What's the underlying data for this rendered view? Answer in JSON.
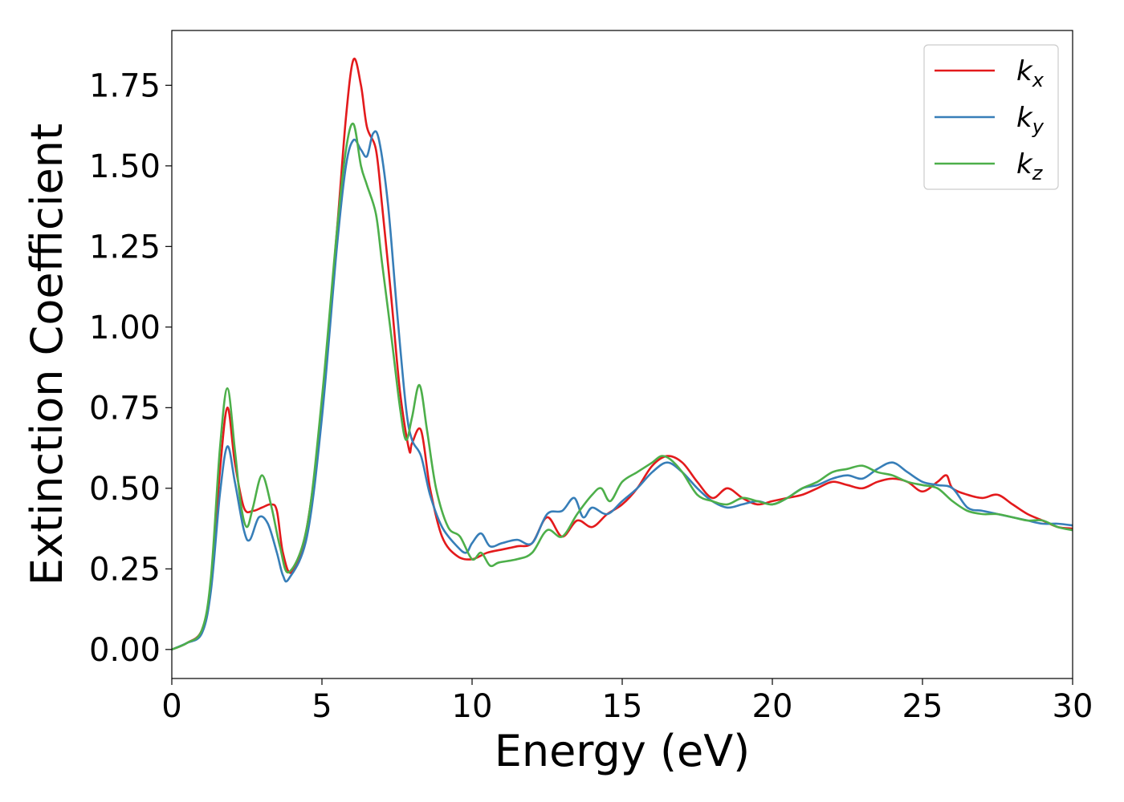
{
  "chart_data": {
    "type": "line",
    "title": "",
    "xlabel": "Energy (eV)",
    "ylabel": "Extinction Coefficient",
    "xlim": [
      0,
      30
    ],
    "ylim": [
      -0.09,
      1.92
    ],
    "xticks": [
      0,
      5,
      10,
      15,
      20,
      25,
      30
    ],
    "xtick_labels": [
      "0",
      "5",
      "10",
      "15",
      "20",
      "25",
      "30"
    ],
    "yticks": [
      0.0,
      0.25,
      0.5,
      0.75,
      1.0,
      1.25,
      1.5,
      1.75
    ],
    "ytick_labels": [
      "0.00",
      "0.25",
      "0.50",
      "0.75",
      "1.00",
      "1.25",
      "1.50",
      "1.75"
    ],
    "grid": false,
    "legend_position": "top-right",
    "series": [
      {
        "name": "k_x",
        "label_main": "k",
        "label_sub": "x",
        "color": "#e31a1c",
        "x": [
          0,
          0.5,
          1.0,
          1.3,
          1.6,
          1.85,
          2.1,
          2.4,
          2.7,
          3.0,
          3.3,
          3.5,
          3.7,
          4.0,
          4.5,
          5.0,
          5.5,
          5.8,
          6.05,
          6.3,
          6.5,
          6.8,
          7.0,
          7.3,
          7.6,
          7.9,
          8.0,
          8.3,
          8.6,
          9.0,
          9.5,
          10.0,
          10.5,
          11.0,
          11.5,
          12.0,
          12.5,
          13.0,
          13.5,
          14.0,
          14.5,
          15.0,
          15.5,
          16.0,
          16.5,
          17.0,
          17.5,
          18.0,
          18.5,
          19.0,
          19.5,
          20.0,
          20.5,
          21.0,
          21.5,
          22.0,
          22.5,
          23.0,
          23.5,
          24.0,
          24.5,
          25.0,
          25.5,
          25.8,
          26.0,
          26.5,
          27.0,
          27.5,
          28.0,
          28.5,
          29.0,
          29.5,
          30.0
        ],
        "y": [
          0.0,
          0.02,
          0.06,
          0.2,
          0.55,
          0.75,
          0.58,
          0.44,
          0.43,
          0.44,
          0.45,
          0.43,
          0.3,
          0.24,
          0.38,
          0.75,
          1.3,
          1.65,
          1.83,
          1.75,
          1.62,
          1.55,
          1.38,
          1.1,
          0.8,
          0.62,
          0.64,
          0.68,
          0.5,
          0.35,
          0.29,
          0.28,
          0.3,
          0.31,
          0.32,
          0.33,
          0.41,
          0.35,
          0.4,
          0.38,
          0.42,
          0.45,
          0.5,
          0.57,
          0.6,
          0.58,
          0.52,
          0.47,
          0.5,
          0.47,
          0.45,
          0.46,
          0.47,
          0.48,
          0.5,
          0.52,
          0.51,
          0.5,
          0.52,
          0.53,
          0.52,
          0.49,
          0.52,
          0.54,
          0.5,
          0.48,
          0.47,
          0.48,
          0.45,
          0.42,
          0.4,
          0.38,
          0.375
        ]
      },
      {
        "name": "k_y",
        "label_main": "k",
        "label_sub": "y",
        "color": "#377eb8",
        "x": [
          0,
          0.5,
          1.0,
          1.3,
          1.6,
          1.85,
          2.1,
          2.4,
          2.6,
          2.9,
          3.2,
          3.5,
          3.7,
          3.9,
          4.5,
          5.0,
          5.5,
          5.8,
          6.05,
          6.3,
          6.5,
          6.7,
          6.9,
          7.2,
          7.5,
          7.8,
          8.0,
          8.3,
          8.6,
          9.0,
          9.5,
          9.8,
          10.0,
          10.3,
          10.6,
          11.0,
          11.5,
          12.0,
          12.5,
          13.0,
          13.4,
          13.7,
          14.0,
          14.5,
          15.0,
          15.5,
          16.0,
          16.5,
          17.0,
          17.5,
          18.0,
          18.5,
          19.0,
          19.5,
          20.0,
          20.5,
          21.0,
          21.5,
          22.0,
          22.5,
          23.0,
          23.5,
          24.0,
          24.5,
          25.0,
          25.5,
          26.0,
          26.5,
          27.0,
          27.5,
          28.0,
          28.5,
          29.0,
          29.5,
          30.0
        ],
        "y": [
          0.0,
          0.02,
          0.05,
          0.18,
          0.48,
          0.63,
          0.52,
          0.37,
          0.34,
          0.41,
          0.39,
          0.3,
          0.23,
          0.22,
          0.35,
          0.72,
          1.25,
          1.5,
          1.58,
          1.55,
          1.53,
          1.6,
          1.58,
          1.38,
          1.05,
          0.75,
          0.65,
          0.6,
          0.48,
          0.38,
          0.32,
          0.3,
          0.33,
          0.36,
          0.32,
          0.33,
          0.34,
          0.33,
          0.42,
          0.43,
          0.47,
          0.41,
          0.44,
          0.42,
          0.46,
          0.5,
          0.55,
          0.58,
          0.55,
          0.5,
          0.46,
          0.44,
          0.45,
          0.46,
          0.45,
          0.47,
          0.5,
          0.51,
          0.53,
          0.54,
          0.53,
          0.56,
          0.58,
          0.55,
          0.52,
          0.51,
          0.5,
          0.44,
          0.43,
          0.42,
          0.41,
          0.4,
          0.39,
          0.39,
          0.385
        ]
      },
      {
        "name": "k_z",
        "label_main": "k",
        "label_sub": "z",
        "color": "#4daf4a",
        "x": [
          0,
          0.5,
          1.0,
          1.3,
          1.6,
          1.85,
          2.1,
          2.3,
          2.5,
          2.7,
          3.0,
          3.3,
          3.6,
          3.9,
          4.5,
          5.0,
          5.5,
          5.8,
          6.05,
          6.3,
          6.5,
          6.8,
          7.0,
          7.3,
          7.6,
          7.8,
          8.0,
          8.25,
          8.5,
          8.8,
          9.2,
          9.6,
          10.0,
          10.3,
          10.6,
          10.9,
          11.5,
          12.0,
          12.5,
          13.0,
          13.5,
          14.0,
          14.3,
          14.6,
          15.0,
          15.5,
          16.0,
          16.3,
          16.6,
          17.0,
          17.5,
          18.0,
          18.5,
          19.0,
          19.5,
          20.0,
          20.5,
          21.0,
          21.5,
          22.0,
          22.5,
          23.0,
          23.5,
          24.0,
          24.5,
          25.0,
          25.5,
          26.0,
          26.5,
          27.0,
          27.5,
          28.0,
          28.5,
          29.0,
          29.5,
          30.0
        ],
        "y": [
          0.0,
          0.02,
          0.06,
          0.22,
          0.62,
          0.81,
          0.62,
          0.45,
          0.38,
          0.44,
          0.54,
          0.45,
          0.32,
          0.24,
          0.38,
          0.78,
          1.3,
          1.55,
          1.63,
          1.5,
          1.44,
          1.35,
          1.2,
          0.98,
          0.75,
          0.65,
          0.72,
          0.82,
          0.68,
          0.5,
          0.38,
          0.35,
          0.28,
          0.3,
          0.26,
          0.27,
          0.28,
          0.3,
          0.37,
          0.35,
          0.42,
          0.48,
          0.5,
          0.46,
          0.52,
          0.55,
          0.58,
          0.6,
          0.59,
          0.55,
          0.48,
          0.46,
          0.45,
          0.47,
          0.46,
          0.45,
          0.47,
          0.5,
          0.52,
          0.55,
          0.56,
          0.57,
          0.55,
          0.54,
          0.52,
          0.51,
          0.5,
          0.46,
          0.43,
          0.42,
          0.42,
          0.41,
          0.4,
          0.4,
          0.38,
          0.37
        ]
      }
    ]
  }
}
